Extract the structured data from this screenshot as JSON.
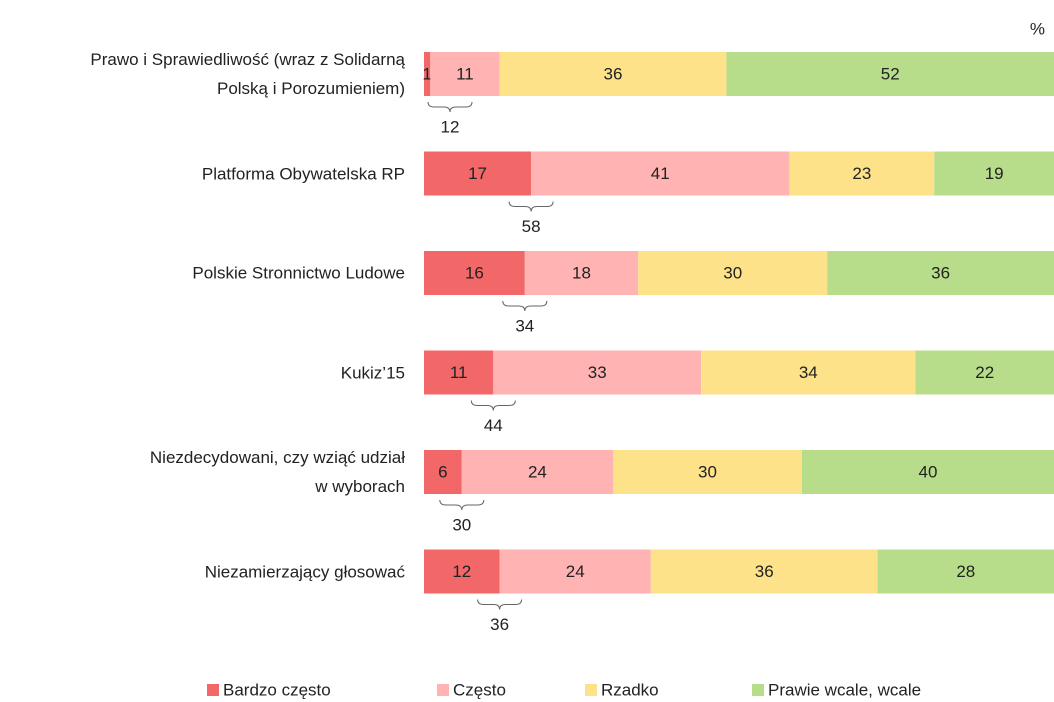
{
  "chart_data": {
    "type": "stacked-bar",
    "orientation": "horizontal",
    "unit": "%",
    "categories": [
      "Prawo i Sprawiedliwość (wraz z Solidarną\nPolską i Porozumieniem)",
      "Platforma Obywatelska RP",
      "Polskie Stronnictwo Ludowe",
      "Kukiz’15",
      "Niezdecydowani, czy wziąć udział\nw wyborach",
      "Niezamierzający głosować"
    ],
    "series": [
      {
        "name": "Bardzo często",
        "color": "#f26767",
        "values": [
          1,
          17,
          16,
          11,
          6,
          12
        ]
      },
      {
        "name": "Często",
        "color": "#ffb3b3",
        "values": [
          11,
          41,
          18,
          33,
          24,
          24
        ]
      },
      {
        "name": "Rzadko",
        "color": "#fee28a",
        "values": [
          36,
          23,
          30,
          34,
          30,
          36
        ]
      },
      {
        "name": "Prawie wcale, wcale",
        "color": "#b7dd8a",
        "values": [
          52,
          19,
          36,
          22,
          40,
          28
        ]
      }
    ],
    "brace_labels": [
      12,
      58,
      34,
      44,
      30,
      36
    ],
    "xlim": [
      0,
      100
    ]
  }
}
